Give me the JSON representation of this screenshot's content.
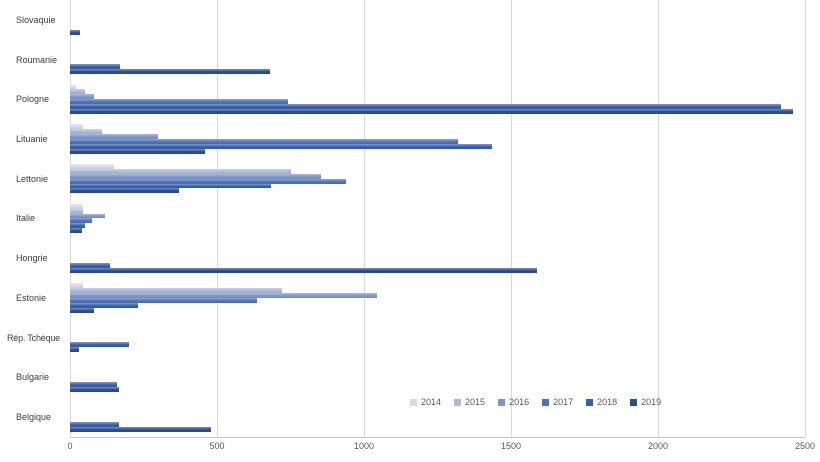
{
  "chart_data": {
    "type": "bar",
    "orientation": "horizontal",
    "title": "",
    "categories": [
      "Slovaquie",
      "Roumanie",
      "Pologne",
      "Lituanie",
      "Lettonie",
      "Italie",
      "Hongrie",
      "Estonie",
      "Rép. Tchèque",
      "Bulgarie",
      "Belgique"
    ],
    "series": [
      {
        "name": "2014",
        "color": "#d3dbea",
        "values": [
          null,
          null,
          20,
          45,
          150,
          45,
          null,
          45,
          null,
          null,
          null
        ]
      },
      {
        "name": "2015",
        "color": "#a9bada",
        "values": [
          null,
          null,
          50,
          110,
          750,
          45,
          null,
          720,
          null,
          null,
          null
        ]
      },
      {
        "name": "2016",
        "color": "#7e95c9",
        "values": [
          null,
          null,
          80,
          300,
          855,
          120,
          null,
          1045,
          null,
          null,
          null
        ]
      },
      {
        "name": "2017",
        "color": "#4f73b6",
        "values": [
          null,
          null,
          740,
          1320,
          940,
          75,
          null,
          635,
          null,
          null,
          null
        ]
      },
      {
        "name": "2018",
        "color": "#3560ac",
        "values": [
          null,
          170,
          2420,
          1435,
          685,
          50,
          135,
          230,
          200,
          160,
          165
        ]
      },
      {
        "name": "2019",
        "color": "#2b4d8f",
        "values": [
          35,
          680,
          2460,
          460,
          370,
          40,
          1590,
          80,
          30,
          165,
          480
        ]
      }
    ],
    "xlim": [
      0,
      2500
    ],
    "x_tick_values": [
      0,
      500,
      1000,
      1500,
      2000,
      2500
    ],
    "x_tick_labels": [
      "0",
      "500",
      "1000",
      "1500",
      "2000",
      "2500"
    ],
    "grid": true,
    "legend_position": "inside-bottom-center",
    "colors": {
      "gridline": "#d9d9d9",
      "axis_line": "#c8c8c8",
      "tick_text": "#595959",
      "category_text": "#404040",
      "background": "#ffffff"
    }
  }
}
